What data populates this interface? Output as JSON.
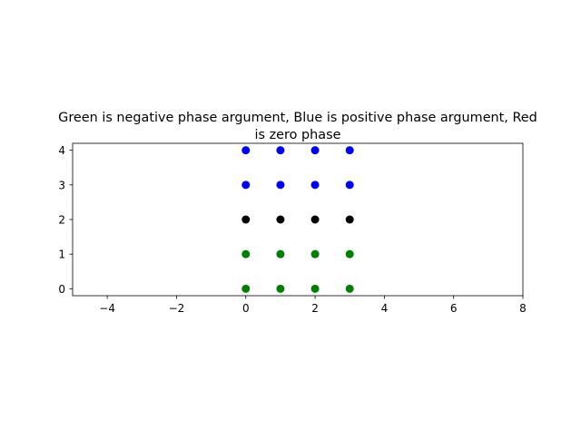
{
  "chart_data": {
    "type": "scatter",
    "title_line1": "Green is negative phase argument, Blue is positive phase argument, Red",
    "title_line2": "is zero phase",
    "xlabel": "",
    "ylabel": "",
    "xlim": [
      -5,
      8
    ],
    "ylim": [
      -0.2,
      4.2
    ],
    "xticks": [
      -4,
      -2,
      0,
      2,
      4,
      6,
      8
    ],
    "xtick_labels": [
      "−4",
      "−2",
      "0",
      "2",
      "4",
      "6",
      "8"
    ],
    "yticks": [
      0,
      1,
      2,
      3,
      4
    ],
    "ytick_labels": [
      "0",
      "1",
      "2",
      "3",
      "4"
    ],
    "grid": false,
    "series": [
      {
        "color": "#0000ff",
        "points": [
          [
            0,
            3
          ],
          [
            1,
            3
          ],
          [
            2,
            3
          ],
          [
            3,
            3
          ],
          [
            0,
            4
          ],
          [
            1,
            4
          ],
          [
            2,
            4
          ],
          [
            3,
            4
          ]
        ]
      },
      {
        "color": "#000000",
        "points": [
          [
            0,
            2
          ],
          [
            1,
            2
          ],
          [
            2,
            2
          ],
          [
            3,
            2
          ]
        ]
      },
      {
        "color": "#008000",
        "points": [
          [
            0,
            0
          ],
          [
            1,
            0
          ],
          [
            2,
            0
          ],
          [
            3,
            0
          ],
          [
            0,
            1
          ],
          [
            1,
            1
          ],
          [
            2,
            1
          ],
          [
            3,
            1
          ]
        ]
      }
    ]
  }
}
